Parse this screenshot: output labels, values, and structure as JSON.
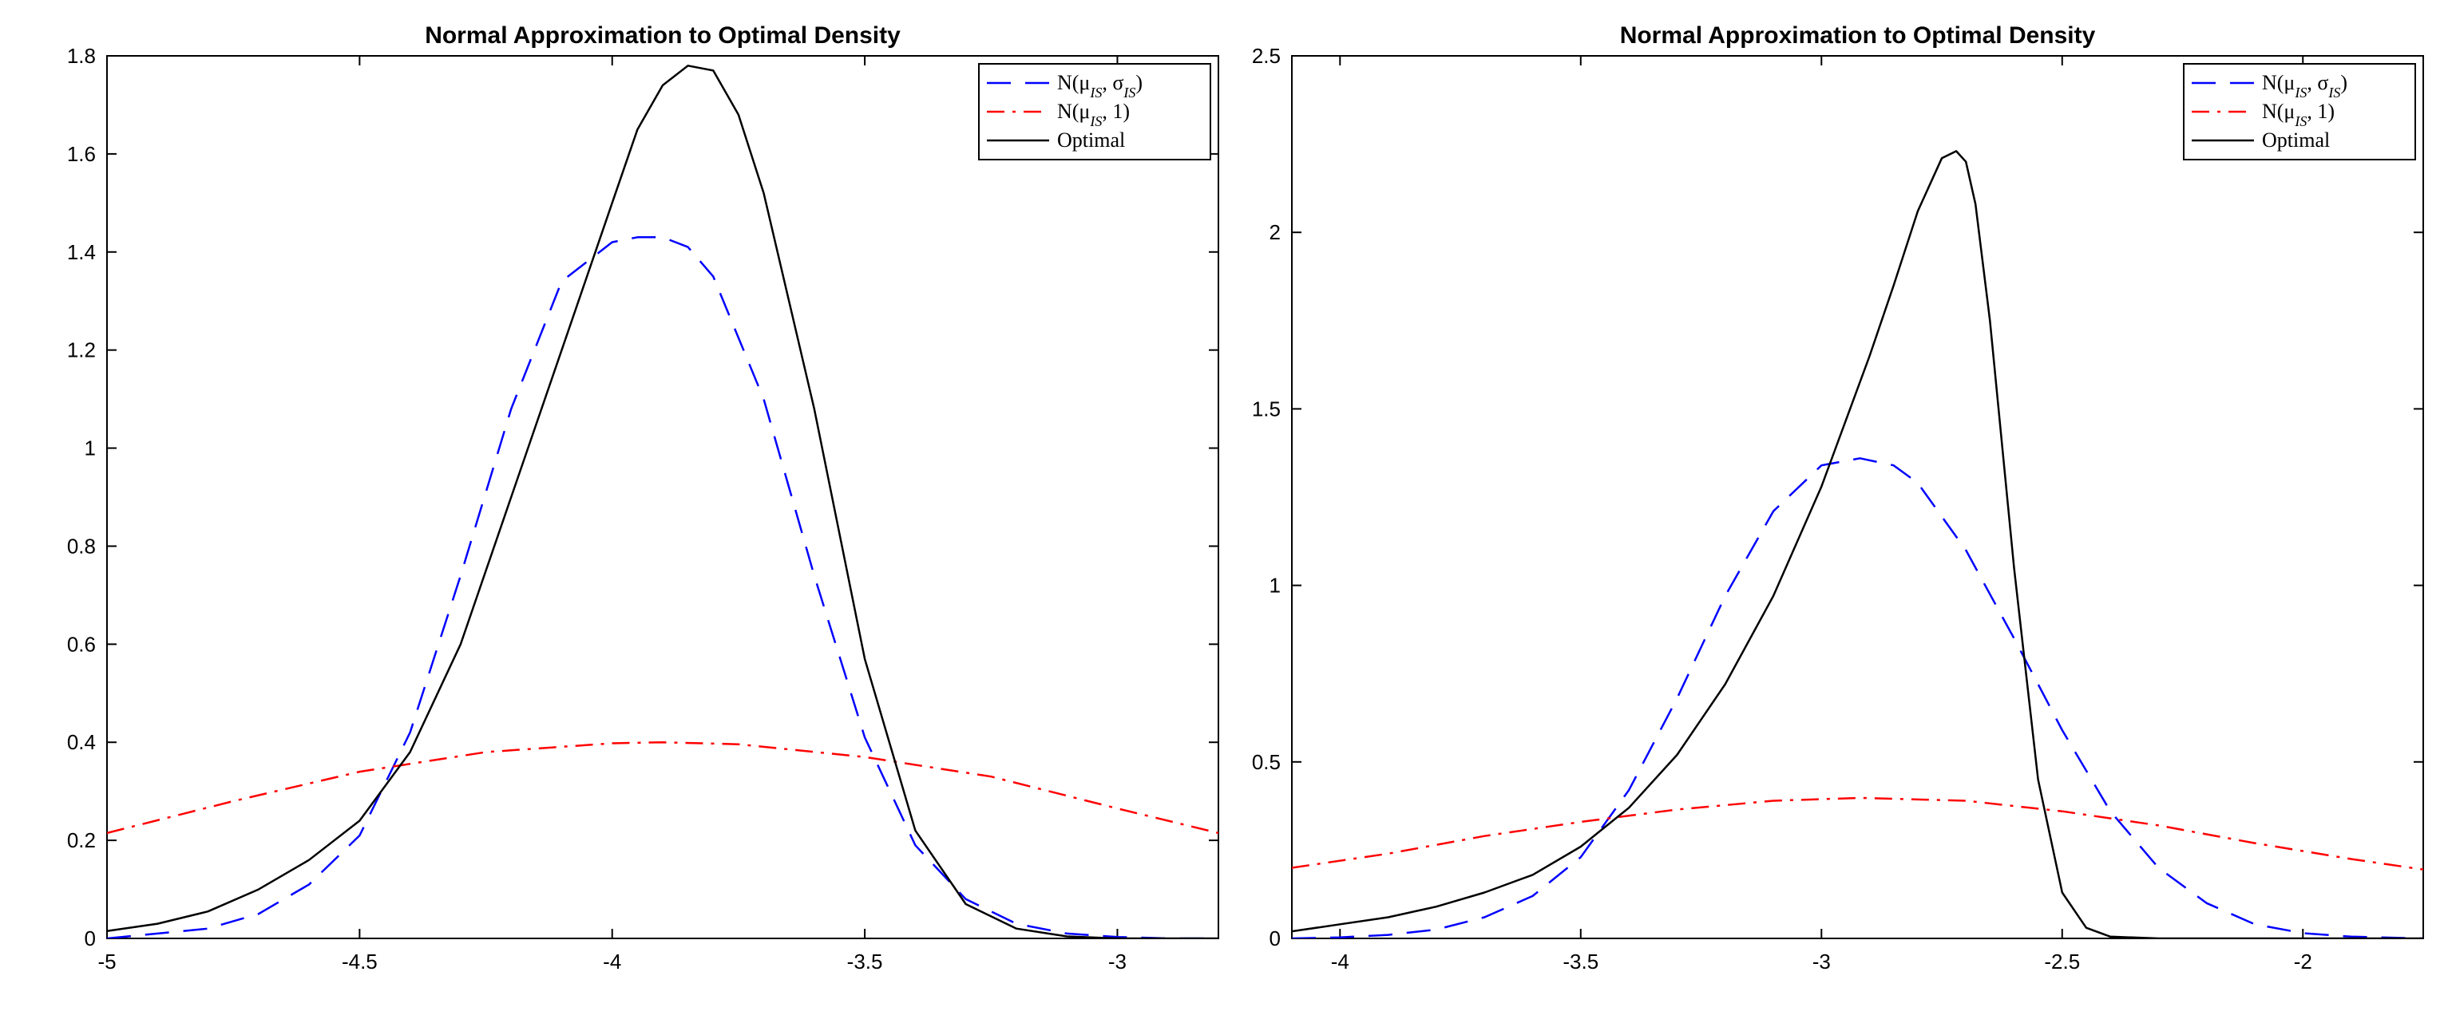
{
  "chart_data": [
    {
      "type": "line",
      "title": "Normal Approximation to Optimal Density",
      "xlabel": "",
      "ylabel": "",
      "xlim": [
        -5,
        -2.8
      ],
      "ylim": [
        0,
        1.8
      ],
      "xticks": [
        -5,
        -4.5,
        -4,
        -3.5,
        -3
      ],
      "xtick_labels": [
        "-5",
        "-4.5",
        "-4",
        "-3.5",
        "-3"
      ],
      "yticks": [
        0,
        0.2,
        0.4,
        0.6,
        0.8,
        1,
        1.2,
        1.4,
        1.6,
        1.8
      ],
      "ytick_labels": [
        "0",
        "0.2",
        "0.4",
        "0.6",
        "0.8",
        "1",
        "1.2",
        "1.4",
        "1.6",
        "1.8"
      ],
      "grid": false,
      "legend_position": "top-right",
      "series": [
        {
          "name": "N(μIS, σIS)",
          "name_main": "N(μ",
          "name_sub1": "IS",
          "name_mid": ", σ",
          "name_sub2": "IS",
          "name_end": ")",
          "color": "#0000ff",
          "style": "dashed",
          "x": [
            -5.0,
            -4.9,
            -4.8,
            -4.7,
            -4.6,
            -4.5,
            -4.4,
            -4.3,
            -4.2,
            -4.1,
            -4.0,
            -3.95,
            -3.9,
            -3.85,
            -3.8,
            -3.7,
            -3.6,
            -3.5,
            -3.4,
            -3.3,
            -3.2,
            -3.1,
            -3.0,
            -2.9,
            -2.8
          ],
          "y": [
            0.0,
            0.01,
            0.02,
            0.05,
            0.11,
            0.21,
            0.42,
            0.74,
            1.08,
            1.34,
            1.42,
            1.43,
            1.43,
            1.41,
            1.35,
            1.1,
            0.74,
            0.41,
            0.19,
            0.08,
            0.03,
            0.01,
            0.003,
            0.0,
            0.0
          ]
        },
        {
          "name": "N(μIS, 1)",
          "name_main": "N(μ",
          "name_sub1": "IS",
          "name_mid": ", 1)",
          "name_sub2": "",
          "name_end": "",
          "color": "#ff0000",
          "style": "dashdot",
          "x": [
            -5.0,
            -4.75,
            -4.5,
            -4.25,
            -4.0,
            -3.9,
            -3.75,
            -3.5,
            -3.25,
            -3.0,
            -2.8
          ],
          "y": [
            0.215,
            0.28,
            0.34,
            0.38,
            0.398,
            0.4,
            0.396,
            0.37,
            0.33,
            0.265,
            0.215
          ]
        },
        {
          "name": "Optimal",
          "name_main": "Optimal",
          "name_sub1": "",
          "name_mid": "",
          "name_sub2": "",
          "name_end": "",
          "color": "#000000",
          "style": "solid",
          "x": [
            -5.0,
            -4.9,
            -4.8,
            -4.7,
            -4.6,
            -4.5,
            -4.4,
            -4.3,
            -4.2,
            -4.1,
            -4.0,
            -3.95,
            -3.9,
            -3.85,
            -3.8,
            -3.75,
            -3.7,
            -3.6,
            -3.5,
            -3.4,
            -3.3,
            -3.2,
            -3.1,
            -3.0,
            -2.9,
            -2.8
          ],
          "y": [
            0.015,
            0.03,
            0.055,
            0.1,
            0.16,
            0.24,
            0.38,
            0.6,
            0.9,
            1.2,
            1.5,
            1.65,
            1.74,
            1.78,
            1.77,
            1.68,
            1.52,
            1.08,
            0.57,
            0.22,
            0.07,
            0.02,
            0.004,
            0.0,
            0.0,
            0.0
          ]
        }
      ]
    },
    {
      "type": "line",
      "title": "Normal Approximation to Optimal Density",
      "xlabel": "",
      "ylabel": "",
      "xlim": [
        -4.1,
        -1.75
      ],
      "ylim": [
        0,
        2.5
      ],
      "xticks": [
        -4,
        -3.5,
        -3,
        -2.5,
        -2
      ],
      "xtick_labels": [
        "-4",
        "-3.5",
        "-3",
        "-2.5",
        "-2"
      ],
      "yticks": [
        0,
        0.5,
        1,
        1.5,
        2,
        2.5
      ],
      "ytick_labels": [
        "0",
        "0.5",
        "1",
        "1.5",
        "2",
        "2.5"
      ],
      "grid": false,
      "legend_position": "top-right",
      "series": [
        {
          "name": "N(μIS, σIS)",
          "name_main": "N(μ",
          "name_sub1": "IS",
          "name_mid": ", σ",
          "name_sub2": "IS",
          "name_end": ")",
          "color": "#0000ff",
          "style": "dashed",
          "x": [
            -4.1,
            -4.0,
            -3.9,
            -3.8,
            -3.7,
            -3.6,
            -3.5,
            -3.4,
            -3.3,
            -3.2,
            -3.1,
            -3.0,
            -2.92,
            -2.85,
            -2.8,
            -2.7,
            -2.6,
            -2.5,
            -2.4,
            -2.3,
            -2.2,
            -2.1,
            -2.0,
            -1.9,
            -1.75
          ],
          "y": [
            0.0,
            0.003,
            0.01,
            0.025,
            0.06,
            0.12,
            0.23,
            0.42,
            0.68,
            0.97,
            1.21,
            1.34,
            1.36,
            1.34,
            1.29,
            1.1,
            0.85,
            0.59,
            0.36,
            0.2,
            0.1,
            0.04,
            0.015,
            0.005,
            0.0
          ]
        },
        {
          "name": "N(μIS, 1)",
          "name_main": "N(μ",
          "name_sub1": "IS",
          "name_mid": ", 1)",
          "name_sub2": "",
          "name_end": "",
          "color": "#ff0000",
          "style": "dashdot",
          "x": [
            -4.1,
            -3.9,
            -3.7,
            -3.5,
            -3.3,
            -3.1,
            -2.92,
            -2.7,
            -2.5,
            -2.3,
            -2.1,
            -1.9,
            -1.75
          ],
          "y": [
            0.2,
            0.24,
            0.29,
            0.33,
            0.365,
            0.39,
            0.398,
            0.39,
            0.36,
            0.32,
            0.27,
            0.225,
            0.195
          ]
        },
        {
          "name": "Optimal",
          "name_main": "Optimal",
          "name_sub1": "",
          "name_mid": "",
          "name_sub2": "",
          "name_end": "",
          "color": "#000000",
          "style": "solid",
          "x": [
            -4.1,
            -4.0,
            -3.9,
            -3.8,
            -3.7,
            -3.6,
            -3.5,
            -3.4,
            -3.3,
            -3.2,
            -3.1,
            -3.0,
            -2.9,
            -2.85,
            -2.8,
            -2.75,
            -2.72,
            -2.7,
            -2.68,
            -2.65,
            -2.6,
            -2.55,
            -2.5,
            -2.45,
            -2.4,
            -2.3,
            -2.0,
            -1.75
          ],
          "y": [
            0.02,
            0.04,
            0.06,
            0.09,
            0.13,
            0.18,
            0.26,
            0.37,
            0.52,
            0.72,
            0.97,
            1.28,
            1.65,
            1.85,
            2.06,
            2.21,
            2.23,
            2.2,
            2.08,
            1.75,
            1.05,
            0.45,
            0.13,
            0.03,
            0.005,
            0.0,
            0.0,
            0.0
          ]
        }
      ]
    }
  ]
}
